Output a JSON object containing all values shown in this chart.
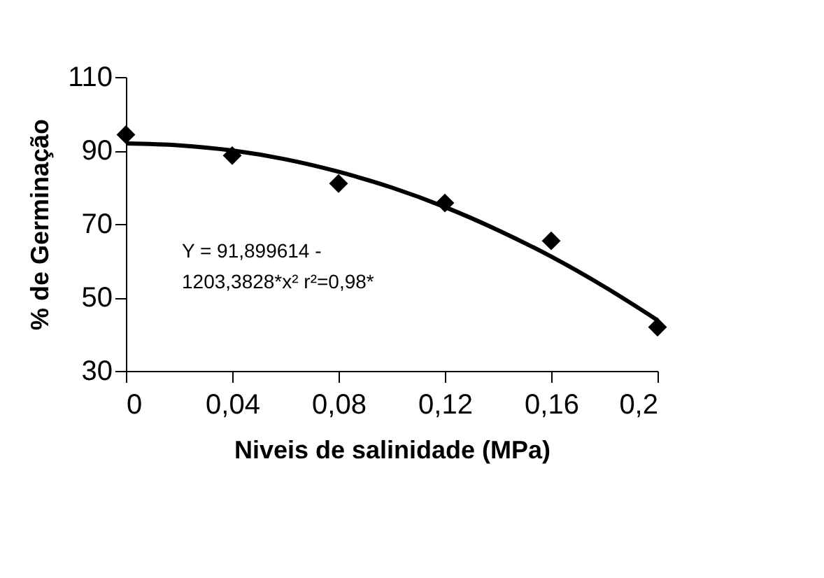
{
  "chart_data": {
    "type": "scatter",
    "xlabel": "Niveis de salinidade (MPa)",
    "ylabel": "% de Germinação",
    "x": [
      0,
      0.04,
      0.08,
      0.12,
      0.16,
      0.2
    ],
    "series": [
      {
        "color": "#000000",
        "marker": "diamond",
        "values": [
          94.3,
          88.6,
          81,
          75.7,
          65.4,
          41.9
        ]
      },
      {
        "type": "line",
        "color": "#000000",
        "marker": "none",
        "line_style": "solid",
        "x": [
          0,
          0.02,
          0.04,
          0.06,
          0.08,
          0.1,
          0.12,
          0.14,
          0.16,
          0.18,
          0.2
        ],
        "values": [
          91.9,
          91.4,
          90,
          87.6,
          84.2,
          79.9,
          74.6,
          68.3,
          61.1,
          52.9,
          43.8
        ]
      }
    ],
    "xlim": [
      0,
      0.2
    ],
    "xticks": [
      {
        "value": 0,
        "label": "0"
      },
      {
        "value": 0.04,
        "label": "0,04"
      },
      {
        "value": 0.08,
        "label": "0,08"
      },
      {
        "value": 0.12,
        "label": "0,12"
      },
      {
        "value": 0.16,
        "label": "0,16"
      },
      {
        "value": 0.2,
        "label": "0,2"
      }
    ],
    "ylim": [
      30,
      110
    ],
    "yticks": [
      30,
      50,
      70,
      90,
      110
    ],
    "annotations": [
      "Y = 91,899614 -\n1203,3828*x²  r²=0,98*"
    ],
    "grid": false
  }
}
